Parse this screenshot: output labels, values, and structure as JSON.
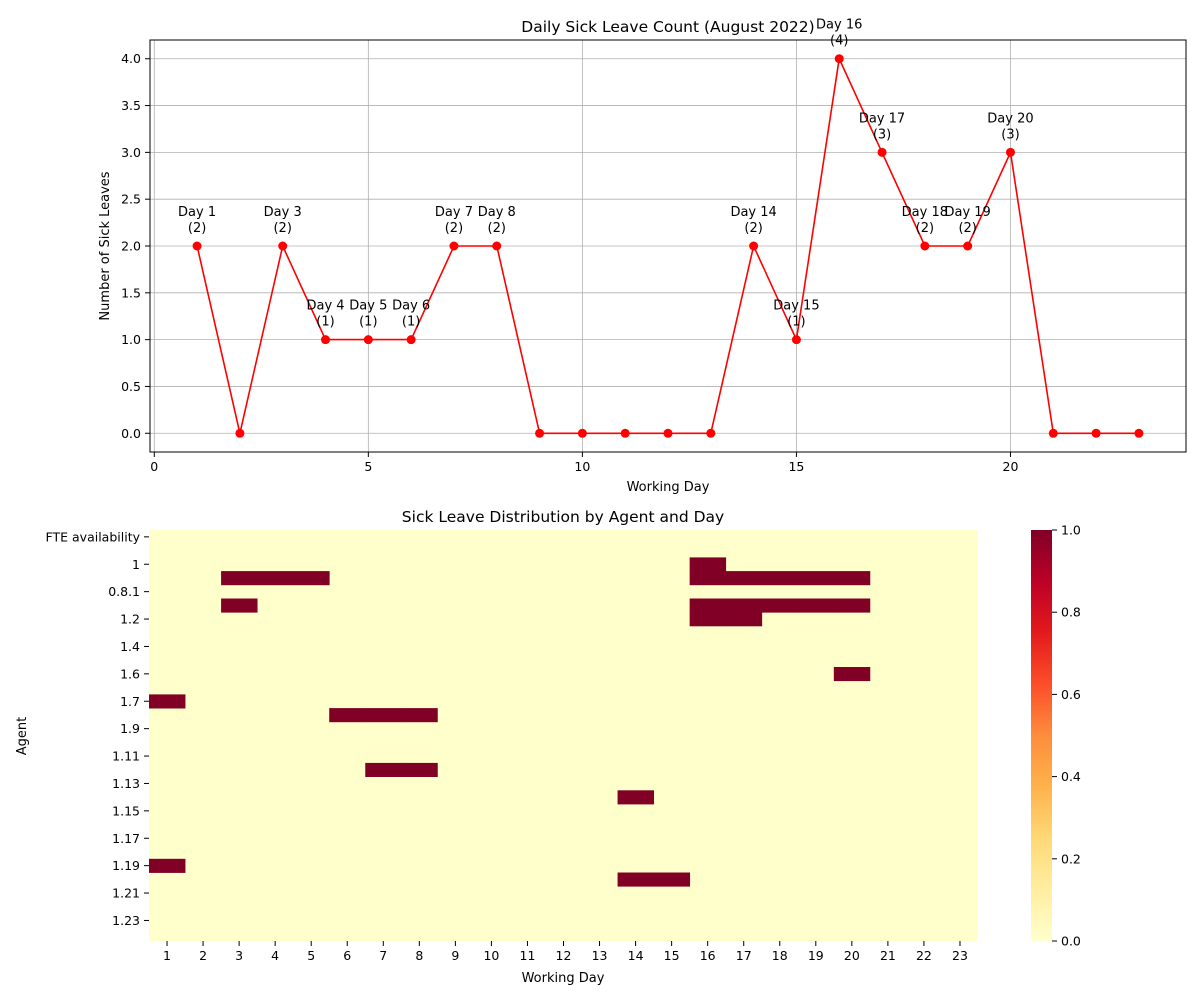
{
  "chart_data": [
    {
      "type": "line",
      "title": "Daily Sick Leave Count (August 2022)",
      "xlabel": "Working Day",
      "ylabel": "Number of Sick Leaves",
      "xlim": [
        -0.1,
        24.1
      ],
      "ylim": [
        -0.2,
        4.2
      ],
      "xticks": [
        0,
        5,
        10,
        15,
        20
      ],
      "yticks": [
        0.0,
        0.5,
        1.0,
        1.5,
        2.0,
        2.5,
        3.0,
        3.5,
        4.0
      ],
      "grid": true,
      "line_color": "#ff0000",
      "series": [
        {
          "x": [
            1,
            2,
            3,
            4,
            5,
            6,
            7,
            8,
            9,
            10,
            11,
            12,
            13,
            14,
            15,
            16,
            17,
            18,
            19,
            20,
            21,
            22,
            23
          ],
          "y": [
            2,
            0,
            2,
            1,
            1,
            1,
            2,
            2,
            0,
            0,
            0,
            0,
            0,
            2,
            1,
            4,
            3,
            2,
            2,
            3,
            0,
            0,
            0
          ]
        }
      ],
      "annotations": [
        {
          "x": 1,
          "y": 2,
          "line1": "Day 1",
          "line2": "(2)"
        },
        {
          "x": 3,
          "y": 2,
          "line1": "Day 3",
          "line2": "(2)"
        },
        {
          "x": 4,
          "y": 1,
          "line1": "Day 4",
          "line2": "(1)"
        },
        {
          "x": 5,
          "y": 1,
          "line1": "Day 5",
          "line2": "(1)"
        },
        {
          "x": 6,
          "y": 1,
          "line1": "Day 6",
          "line2": "(1)"
        },
        {
          "x": 7,
          "y": 2,
          "line1": "Day 7",
          "line2": "(2)"
        },
        {
          "x": 8,
          "y": 2,
          "line1": "Day 8",
          "line2": "(2)"
        },
        {
          "x": 14,
          "y": 2,
          "line1": "Day 14",
          "line2": "(2)"
        },
        {
          "x": 15,
          "y": 1,
          "line1": "Day 15",
          "line2": "(1)"
        },
        {
          "x": 16,
          "y": 4,
          "line1": "Day 16",
          "line2": "(4)"
        },
        {
          "x": 17,
          "y": 3,
          "line1": "Day 17",
          "line2": "(3)"
        },
        {
          "x": 18,
          "y": 2,
          "line1": "Day 18",
          "line2": "(2)"
        },
        {
          "x": 19,
          "y": 2,
          "line1": "Day 19",
          "line2": "(2)"
        },
        {
          "x": 20,
          "y": 3,
          "line1": "Day 20",
          "line2": "(3)"
        }
      ]
    },
    {
      "type": "heatmap",
      "title": "Sick Leave Distribution by Agent and Day",
      "xlabel": "Working Day",
      "ylabel": "Agent",
      "x_tick_labels": [
        "1",
        "2",
        "3",
        "4",
        "5",
        "6",
        "7",
        "8",
        "9",
        "10",
        "11",
        "12",
        "13",
        "14",
        "15",
        "16",
        "17",
        "18",
        "19",
        "20",
        "21",
        "22",
        "23"
      ],
      "y_tick_labels": [
        "FTE availability",
        "1",
        "0.8.1",
        "1.2",
        "1.4",
        "1.6",
        "1.7",
        "1.9",
        "1.11",
        "1.13",
        "1.15",
        "1.17",
        "1.19",
        "1.21",
        "1.23"
      ],
      "row_count": 30,
      "colorbar": {
        "min": 0.0,
        "max": 1.0,
        "ticks": [
          "0.0",
          "0.2",
          "0.4",
          "0.6",
          "0.8",
          "1.0"
        ]
      },
      "colormap": [
        "#ffffcc",
        "#ffeda0",
        "#fed976",
        "#feb24c",
        "#fd8d3c",
        "#fc4e2a",
        "#e31a1c",
        "#bd0026",
        "#800026"
      ],
      "cells_equal_1": [
        {
          "row": 2,
          "days": [
            16
          ]
        },
        {
          "row": 3,
          "days": [
            3,
            4,
            5,
            16,
            17,
            18,
            19,
            20
          ]
        },
        {
          "row": 5,
          "days": [
            3,
            16,
            17,
            18,
            19,
            20
          ]
        },
        {
          "row": 6,
          "days": [
            16,
            17
          ]
        },
        {
          "row": 10,
          "days": [
            20
          ]
        },
        {
          "row": 12,
          "days": [
            1
          ]
        },
        {
          "row": 13,
          "days": [
            6,
            7,
            8
          ]
        },
        {
          "row": 17,
          "days": [
            7,
            8
          ]
        },
        {
          "row": 19,
          "days": [
            14
          ]
        },
        {
          "row": 24,
          "days": [
            1
          ]
        },
        {
          "row": 25,
          "days": [
            14,
            15
          ]
        }
      ]
    }
  ]
}
